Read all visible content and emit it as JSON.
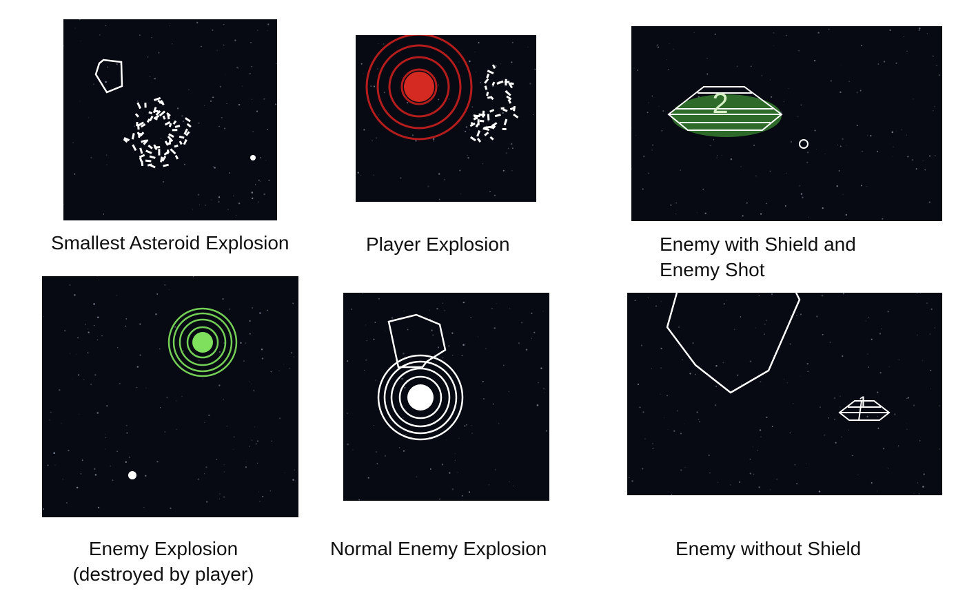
{
  "panels": [
    {
      "id": "smallest-asteroid-explosion",
      "caption": [
        "Smallest Asteroid Explosion"
      ]
    },
    {
      "id": "player-explosion",
      "caption": [
        "Player Explosion"
      ]
    },
    {
      "id": "enemy-with-shield",
      "caption": [
        "Enemy with Shield and",
        "Enemy Shot"
      ],
      "enemy_number": "2"
    },
    {
      "id": "enemy-explosion-destroyed",
      "caption": [
        "Enemy Explosion",
        "(destroyed by player)"
      ]
    },
    {
      "id": "normal-enemy-explosion",
      "caption": [
        "Normal Enemy Explosion"
      ]
    },
    {
      "id": "enemy-without-shield",
      "caption": [
        "Enemy without Shield"
      ],
      "enemy_number": "1"
    }
  ],
  "colors": {
    "space": "#070a12",
    "line": "#ffffff",
    "player_explosion": "#c81e1e",
    "enemy_shield": "#2e6b2a",
    "enemy_explosion": "#7ad85a"
  }
}
